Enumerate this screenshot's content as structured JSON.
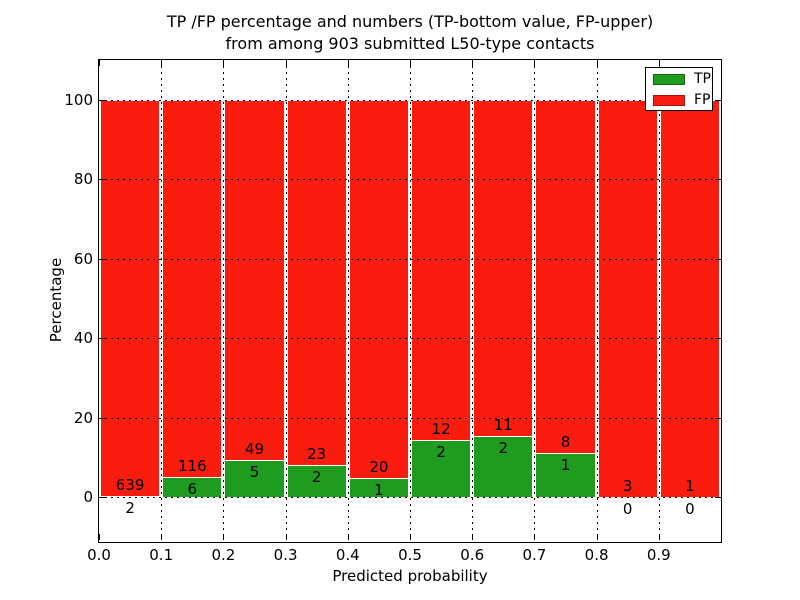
{
  "figure": {
    "background": "#ffffff",
    "frame_color": "#000000",
    "grid_color": "#000000"
  },
  "title": {
    "line1": "TP /FP percentage and numbers (TP-bottom value, FP-upper)",
    "line2": "from among 903 submitted L50-type contacts"
  },
  "axes": {
    "xlabel": "Predicted probability",
    "ylabel": "Percentage",
    "x_tick_labels": [
      "0.0",
      "0.1",
      "0.2",
      "0.3",
      "0.4",
      "0.5",
      "0.6",
      "0.7",
      "0.8",
      "0.9"
    ],
    "y_tick_labels": [
      "0",
      "20",
      "40",
      "60",
      "80",
      "100"
    ]
  },
  "legend": {
    "position": "upper right",
    "items": [
      {
        "label": "TP",
        "color": "#1f9b1f"
      },
      {
        "label": "FP",
        "color": "#fb1c10"
      }
    ]
  },
  "chart_data": {
    "type": "bar",
    "stacked": true,
    "normalized_to_percent": true,
    "title": "TP /FP percentage and numbers (TP-bottom value, FP-upper) from among 903 submitted L50-type contacts",
    "xlabel": "Predicted probability",
    "ylabel": "Percentage",
    "total_contacts": 903,
    "x_bins": [
      "0.0-0.1",
      "0.1-0.2",
      "0.2-0.3",
      "0.3-0.4",
      "0.4-0.5",
      "0.5-0.6",
      "0.6-0.7",
      "0.7-0.8",
      "0.8-0.9",
      "0.9-1.0"
    ],
    "series": [
      {
        "name": "TP",
        "color": "#1f9b1f",
        "counts": [
          2,
          6,
          5,
          2,
          1,
          2,
          2,
          1,
          0,
          0
        ]
      },
      {
        "name": "FP",
        "color": "#fb1c10",
        "counts": [
          639,
          116,
          49,
          23,
          20,
          12,
          11,
          8,
          3,
          1
        ]
      }
    ],
    "tp_percent_of_bin": [
      0.31,
      4.92,
      9.26,
      8.0,
      4.76,
      14.29,
      15.38,
      11.11,
      0.0,
      0.0
    ],
    "x_ticks": [
      0.0,
      0.1,
      0.2,
      0.3,
      0.4,
      0.5,
      0.6,
      0.7,
      0.8,
      0.9
    ],
    "y_ticks": [
      0,
      20,
      40,
      60,
      80,
      100
    ],
    "xlim": [
      0.0,
      1.0
    ],
    "ylim": [
      -11,
      110
    ],
    "grid": true,
    "grid_style": "dotted",
    "legend_position": "upper right"
  }
}
